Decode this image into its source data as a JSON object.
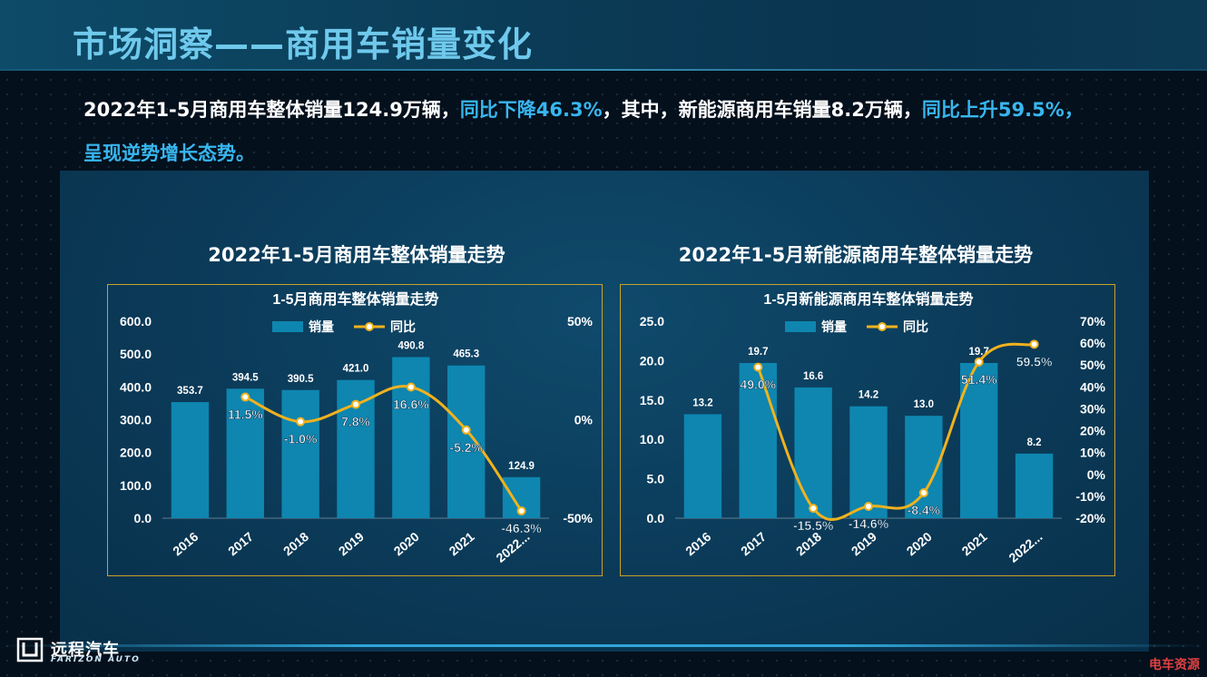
{
  "page": {
    "title": "市场洞察——商用车销量变化",
    "summary": {
      "part1": "2022年1-5月商用车整体销量124.9万辆，",
      "part2": "同比下降46.3%",
      "part3": "，其中，新能源商用车销量8.2万辆，",
      "part4": "同比上升59.5%，",
      "part5": "呈现逆势增长态势。"
    },
    "left_heading": "2022年1-5月商用车整体销量走势",
    "right_heading": "2022年1-5月新能源商用车整体销量走势",
    "logo": {
      "cn": "远程汽车",
      "en": "FARIZON AUTO"
    },
    "watermark": "电车资源",
    "colors": {
      "bar": "#0e86b0",
      "line": "#f0b21e",
      "accent": "#38b6ef",
      "border": "#c9a227"
    }
  },
  "chart_data": [
    {
      "type": "bar",
      "title": "1-5月商用车整体销量走势",
      "categories": [
        "2016",
        "2017",
        "2018",
        "2019",
        "2020",
        "2021",
        "2022..."
      ],
      "series": [
        {
          "name": "销量",
          "type": "bar",
          "axis": "left",
          "values": [
            353.7,
            394.5,
            390.5,
            421.0,
            490.8,
            465.3,
            124.9
          ],
          "labels": [
            "353.7",
            "394.5",
            "390.5",
            "421.0",
            "490.8",
            "465.3",
            "124.9"
          ]
        },
        {
          "name": "同比",
          "type": "line",
          "axis": "right",
          "values": [
            null,
            11.5,
            -1.0,
            7.8,
            16.6,
            -5.2,
            -46.3
          ],
          "labels": [
            "",
            "11.5%",
            "-1.0%",
            "7.8%",
            "16.6%",
            "-5.2%",
            "-46.3%"
          ]
        }
      ],
      "ylim_left": [
        0,
        600
      ],
      "yticks_left": [
        "0.0",
        "100.0",
        "200.0",
        "300.0",
        "400.0",
        "500.0",
        "600.0"
      ],
      "ylim_right": [
        -50,
        50
      ],
      "yticks_right": [
        "-50%",
        "0%",
        "50%"
      ],
      "legend": "top-center",
      "grid": false
    },
    {
      "type": "bar",
      "title": "1-5月新能源商用车整体销量走势",
      "categories": [
        "2016",
        "2017",
        "2018",
        "2019",
        "2020",
        "2021",
        "2022..."
      ],
      "series": [
        {
          "name": "销量",
          "type": "bar",
          "axis": "left",
          "values": [
            13.2,
            19.7,
            16.6,
            14.2,
            13.0,
            19.7,
            8.2
          ],
          "labels": [
            "13.2",
            "19.7",
            "16.6",
            "14.2",
            "13.0",
            "19.7",
            "8.2"
          ]
        },
        {
          "name": "同比",
          "type": "line",
          "axis": "right",
          "values": [
            null,
            49.0,
            -15.5,
            -14.6,
            -8.4,
            51.4,
            59.5
          ],
          "labels": [
            "",
            "49.0%",
            "-15.5%",
            "-14.6%",
            "-8.4%",
            "51.4%",
            "59.5%"
          ]
        }
      ],
      "ylim_left": [
        0,
        25
      ],
      "yticks_left": [
        "0.0",
        "5.0",
        "10.0",
        "15.0",
        "20.0",
        "25.0"
      ],
      "ylim_right": [
        -20,
        70
      ],
      "yticks_right": [
        "-20%",
        "-10%",
        "0%",
        "10%",
        "20%",
        "30%",
        "40%",
        "50%",
        "60%",
        "70%"
      ],
      "legend": "top-center",
      "grid": false
    }
  ]
}
